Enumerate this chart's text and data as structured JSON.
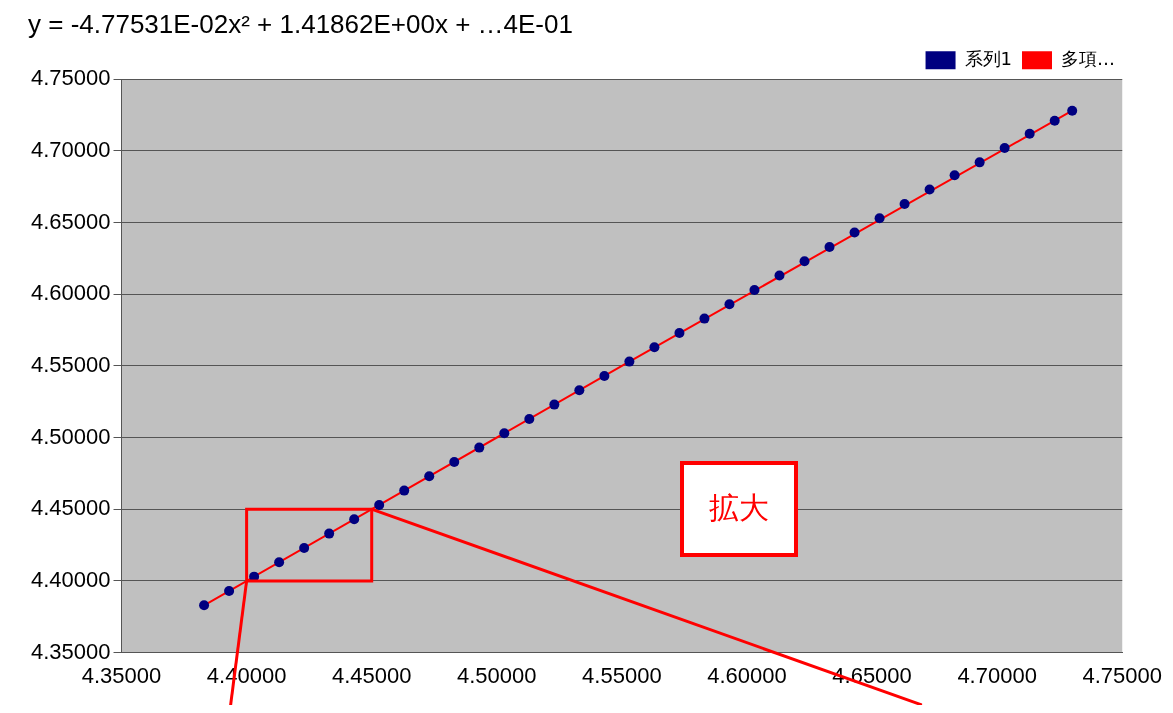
{
  "chart_data": {
    "type": "scatter",
    "title": "y = -4.77531E-02x² + 1.41862E+00x + …4E-01",
    "x": [
      4.383,
      4.393,
      4.403,
      4.413,
      4.423,
      4.433,
      4.443,
      4.453,
      4.463,
      4.473,
      4.483,
      4.493,
      4.503,
      4.513,
      4.523,
      4.533,
      4.543,
      4.553,
      4.563,
      4.573,
      4.583,
      4.593,
      4.603,
      4.613,
      4.623,
      4.633,
      4.643,
      4.653,
      4.663,
      4.673,
      4.683,
      4.693,
      4.703,
      4.713,
      4.723,
      4.73
    ],
    "series": [
      {
        "name": "系列1",
        "type": "scatter",
        "color": "#000080",
        "marker": "circle",
        "values": [
          4.383,
          4.393,
          4.403,
          4.413,
          4.423,
          4.433,
          4.443,
          4.453,
          4.463,
          4.473,
          4.483,
          4.493,
          4.503,
          4.513,
          4.523,
          4.533,
          4.543,
          4.553,
          4.563,
          4.573,
          4.583,
          4.593,
          4.603,
          4.613,
          4.623,
          4.633,
          4.643,
          4.653,
          4.663,
          4.673,
          4.683,
          4.692,
          4.702,
          4.712,
          4.721,
          4.728
        ]
      },
      {
        "name": "多項…",
        "type": "line",
        "color": "#ff0000",
        "marker": "none",
        "line_style": "solid",
        "x": [
          4.383,
          4.55,
          4.73
        ],
        "values": [
          4.383,
          4.55,
          4.728
        ]
      }
    ],
    "xlim": [
      4.35,
      4.75
    ],
    "xticks": [
      {
        "value": 4.35,
        "label": "4.35000"
      },
      {
        "value": 4.4,
        "label": "4.40000"
      },
      {
        "value": 4.45,
        "label": "4.45000"
      },
      {
        "value": 4.5,
        "label": "4.50000"
      },
      {
        "value": 4.55,
        "label": "4.55000"
      },
      {
        "value": 4.6,
        "label": "4.60000"
      },
      {
        "value": 4.65,
        "label": "4.65000"
      },
      {
        "value": 4.7,
        "label": "4.70000"
      },
      {
        "value": 4.75,
        "label": "4.75000"
      }
    ],
    "ylim": [
      4.35,
      4.75
    ],
    "yticks": [
      {
        "value": 4.35,
        "label": "4.35000"
      },
      {
        "value": 4.4,
        "label": "4.40000"
      },
      {
        "value": 4.45,
        "label": "4.45000"
      },
      {
        "value": 4.5,
        "label": "4.50000"
      },
      {
        "value": 4.55,
        "label": "4.55000"
      },
      {
        "value": 4.6,
        "label": "4.60000"
      },
      {
        "value": 4.65,
        "label": "4.65000"
      },
      {
        "value": 4.7,
        "label": "4.70000"
      },
      {
        "value": 4.75,
        "label": "4.75000"
      }
    ],
    "grid": "y",
    "legend": "top right",
    "annotations": [
      "拡大"
    ]
  }
}
